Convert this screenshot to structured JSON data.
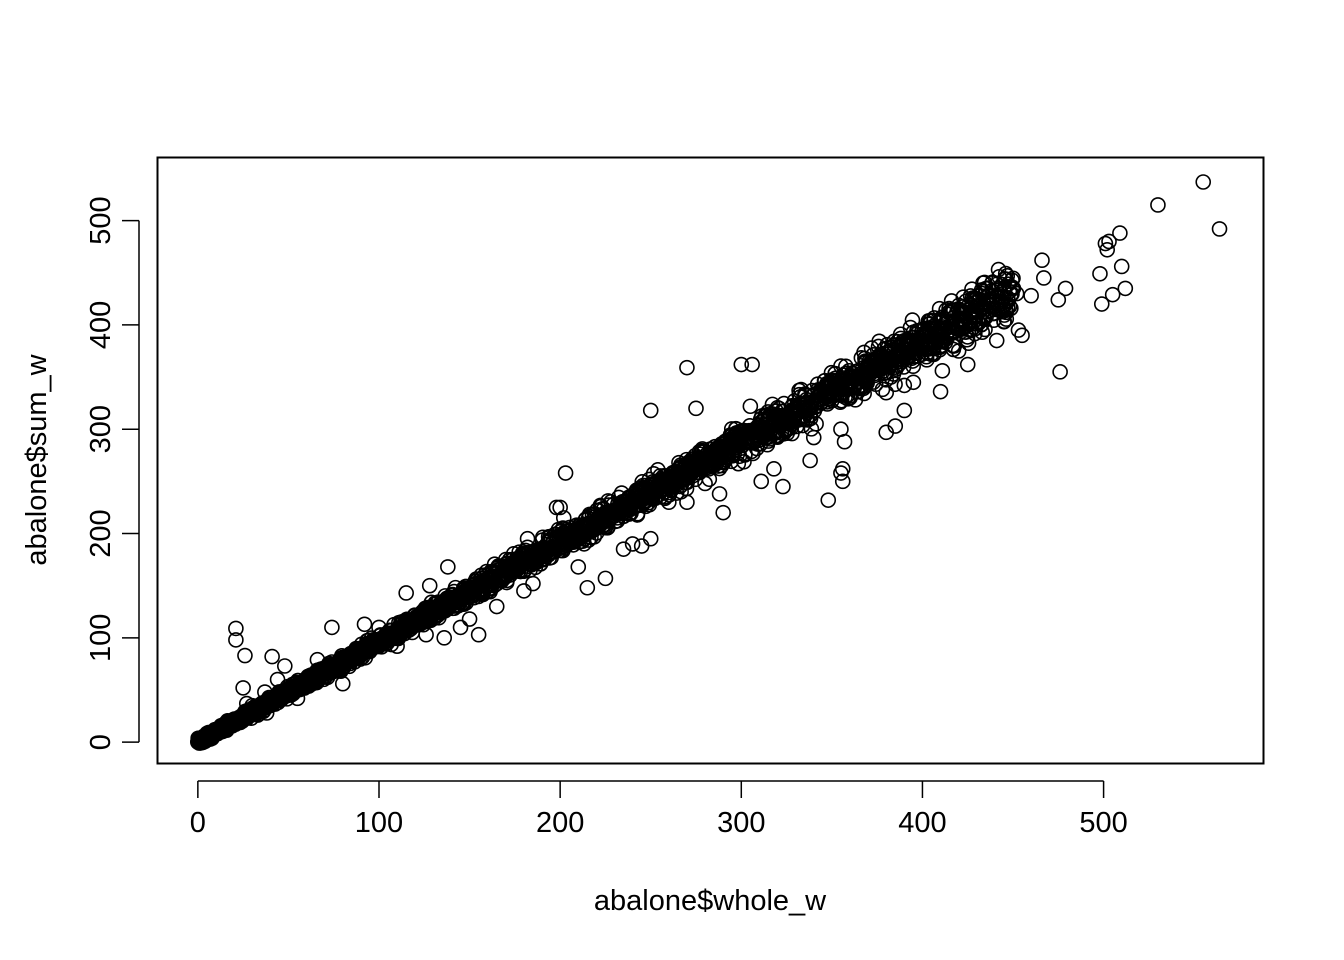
{
  "chart_data": {
    "type": "scatter",
    "title": "",
    "xlabel": "abalone$whole_w",
    "ylabel": "abalone$sum_w",
    "xlim": [
      -22,
      588
    ],
    "ylim": [
      -20,
      560
    ],
    "x_ticks": [
      0,
      100,
      200,
      300,
      400,
      500
    ],
    "y_ticks": [
      0,
      100,
      200,
      300,
      400,
      500
    ],
    "x_tick_labels": [
      "0",
      "100",
      "200",
      "300",
      "400",
      "500"
    ],
    "y_tick_labels": [
      "0",
      "100",
      "200",
      "300",
      "400",
      "500"
    ],
    "grid": false,
    "legend": "none",
    "marker": "open-circle",
    "point_color": "#000000",
    "trend": {
      "description": "sum_w is roughly 0.96 × whole_w",
      "slope": 0.96,
      "intercept": 0,
      "x_range": [
        1,
        450
      ]
    },
    "points": [
      [
        555,
        537
      ],
      [
        530,
        515
      ],
      [
        564,
        492
      ],
      [
        509,
        488
      ],
      [
        501,
        478
      ],
      [
        503,
        480
      ],
      [
        502,
        472
      ],
      [
        510,
        456
      ],
      [
        498,
        449
      ],
      [
        512,
        435
      ],
      [
        505,
        429
      ],
      [
        499,
        420
      ],
      [
        466,
        462
      ],
      [
        467,
        445
      ],
      [
        442,
        453
      ],
      [
        446,
        444
      ],
      [
        479,
        435
      ],
      [
        475,
        424
      ],
      [
        460,
        428
      ],
      [
        452,
        430
      ],
      [
        448,
        432
      ],
      [
        453,
        395
      ],
      [
        455,
        390
      ],
      [
        445,
        403
      ],
      [
        441,
        385
      ],
      [
        433,
        393
      ],
      [
        426,
        420
      ],
      [
        476,
        355
      ],
      [
        425,
        362
      ],
      [
        420,
        375
      ],
      [
        415,
        395
      ],
      [
        410,
        380
      ],
      [
        411,
        356
      ],
      [
        410,
        336
      ],
      [
        405,
        390
      ],
      [
        400,
        385
      ],
      [
        395,
        393
      ],
      [
        395,
        345
      ],
      [
        390,
        342
      ],
      [
        390,
        318
      ],
      [
        385,
        303
      ],
      [
        380,
        297
      ],
      [
        380,
        335
      ],
      [
        370,
        350
      ],
      [
        362,
        340
      ],
      [
        360,
        330
      ],
      [
        355,
        300
      ],
      [
        357,
        288
      ],
      [
        356,
        262
      ],
      [
        355,
        258
      ],
      [
        356,
        250
      ],
      [
        348,
        232
      ],
      [
        340,
        292
      ],
      [
        338,
        270
      ],
      [
        335,
        325
      ],
      [
        333,
        338
      ],
      [
        323,
        245
      ],
      [
        318,
        262
      ],
      [
        311,
        250
      ],
      [
        305,
        322
      ],
      [
        300,
        362
      ],
      [
        306,
        362
      ],
      [
        275,
        320
      ],
      [
        270,
        359
      ],
      [
        250,
        318
      ],
      [
        280,
        248
      ],
      [
        288,
        238
      ],
      [
        290,
        220
      ],
      [
        270,
        230
      ],
      [
        260,
        230
      ],
      [
        250,
        195
      ],
      [
        245,
        188
      ],
      [
        240,
        190
      ],
      [
        235,
        185
      ],
      [
        225,
        157
      ],
      [
        215,
        148
      ],
      [
        210,
        168
      ],
      [
        203,
        258
      ],
      [
        200,
        225
      ],
      [
        198,
        225
      ],
      [
        202,
        215
      ],
      [
        190,
        175
      ],
      [
        185,
        152
      ],
      [
        182,
        195
      ],
      [
        180,
        145
      ],
      [
        170,
        175
      ],
      [
        165,
        130
      ],
      [
        155,
        103
      ],
      [
        150,
        118
      ],
      [
        145,
        110
      ],
      [
        138,
        168
      ],
      [
        136,
        100
      ],
      [
        128,
        150
      ],
      [
        126,
        103
      ],
      [
        115,
        143
      ],
      [
        110,
        92
      ],
      [
        100,
        110
      ],
      [
        92,
        113
      ],
      [
        85,
        85
      ],
      [
        80,
        56
      ],
      [
        74,
        110
      ],
      [
        66,
        79
      ],
      [
        60,
        60
      ],
      [
        55,
        42
      ],
      [
        48,
        73
      ],
      [
        41,
        82
      ],
      [
        44,
        60
      ],
      [
        37,
        48
      ],
      [
        26,
        83
      ],
      [
        21,
        98
      ],
      [
        21,
        109
      ],
      [
        25,
        52
      ],
      [
        27,
        37
      ],
      [
        30,
        35
      ],
      [
        38,
        28
      ],
      [
        16,
        15
      ],
      [
        12,
        10
      ],
      [
        8,
        6
      ],
      [
        5,
        4
      ],
      [
        3,
        2
      ],
      [
        1,
        0
      ]
    ]
  }
}
